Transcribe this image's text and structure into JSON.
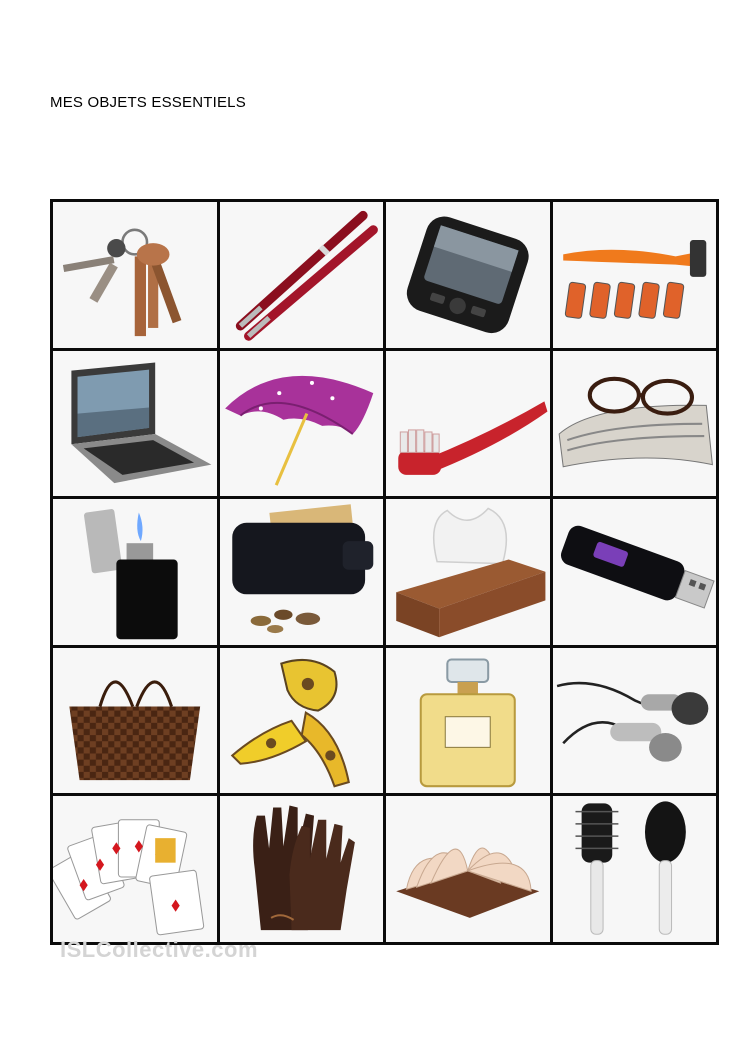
{
  "document": {
    "title": "MES OBJETS ESSENTIELS",
    "watermark": "ISLCollective.com"
  },
  "grid": {
    "columns": 4,
    "rows": 5,
    "items": [
      {
        "icon": "keys-icon"
      },
      {
        "icon": "pens-icon"
      },
      {
        "icon": "mobile-phone-icon"
      },
      {
        "icon": "razor-icon"
      },
      {
        "icon": "laptop-icon"
      },
      {
        "icon": "umbrella-icon"
      },
      {
        "icon": "toothbrush-icon"
      },
      {
        "icon": "glasses-newspaper-icon"
      },
      {
        "icon": "lighter-icon"
      },
      {
        "icon": "wallet-icon"
      },
      {
        "icon": "tissue-box-icon"
      },
      {
        "icon": "usb-stick-icon"
      },
      {
        "icon": "handbag-icon"
      },
      {
        "icon": "scarf-icon"
      },
      {
        "icon": "perfume-icon"
      },
      {
        "icon": "earphones-icon"
      },
      {
        "icon": "playing-cards-icon"
      },
      {
        "icon": "gloves-icon"
      },
      {
        "icon": "book-icon"
      },
      {
        "icon": "hairbrushes-icon"
      }
    ]
  }
}
